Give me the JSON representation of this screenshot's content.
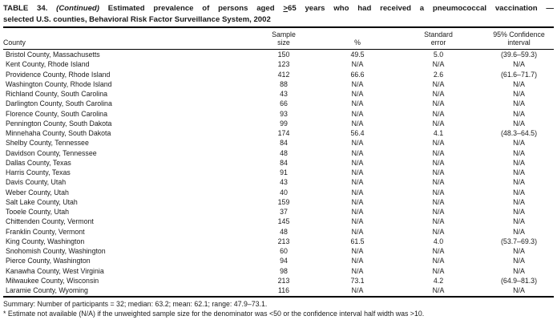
{
  "title": {
    "part1": "TABLE 34. ",
    "continued": "(Continued)",
    "part2": " Estimated prevalence of persons aged ",
    "gte_symbol": ">",
    "part3": "65 years who had received a pneumococcal vaccination —",
    "line2": "selected U.S. counties, Behavioral Risk Factor Surveillance System, 2002"
  },
  "table": {
    "columns": [
      {
        "line1": "",
        "line2": "County"
      },
      {
        "line1": "Sample",
        "line2": "size"
      },
      {
        "line1": "",
        "line2": "%"
      },
      {
        "line1": "Standard",
        "line2": "error"
      },
      {
        "line1": "95% Confidence",
        "line2": "interval"
      }
    ],
    "rows": [
      [
        "Bristol County, Massachusetts",
        "150",
        "49.5",
        "5.0",
        "(39.6–59.3)"
      ],
      [
        "Kent County, Rhode Island",
        "123",
        "N/A",
        "N/A",
        "N/A"
      ],
      [
        "Providence County, Rhode Island",
        "412",
        "66.6",
        "2.6",
        "(61.6–71.7)"
      ],
      [
        "Washington County, Rhode Island",
        "88",
        "N/A",
        "N/A",
        "N/A"
      ],
      [
        "Richland County, South Carolina",
        "43",
        "N/A",
        "N/A",
        "N/A"
      ],
      [
        "Darlington County, South Carolina",
        "66",
        "N/A",
        "N/A",
        "N/A"
      ],
      [
        "Florence County, South Carolina",
        "93",
        "N/A",
        "N/A",
        "N/A"
      ],
      [
        "Pennington County, South Dakota",
        "99",
        "N/A",
        "N/A",
        "N/A"
      ],
      [
        "Minnehaha County, South Dakota",
        "174",
        "56.4",
        "4.1",
        "(48.3–64.5)"
      ],
      [
        "Shelby County, Tennessee",
        "84",
        "N/A",
        "N/A",
        "N/A"
      ],
      [
        "Davidson County, Tennessee",
        "48",
        "N/A",
        "N/A",
        "N/A"
      ],
      [
        "Dallas County, Texas",
        "84",
        "N/A",
        "N/A",
        "N/A"
      ],
      [
        "Harris County, Texas",
        "91",
        "N/A",
        "N/A",
        "N/A"
      ],
      [
        "Davis County, Utah",
        "43",
        "N/A",
        "N/A",
        "N/A"
      ],
      [
        "Weber County, Utah",
        "40",
        "N/A",
        "N/A",
        "N/A"
      ],
      [
        "Salt Lake County, Utah",
        "159",
        "N/A",
        "N/A",
        "N/A"
      ],
      [
        "Tooele County, Utah",
        "37",
        "N/A",
        "N/A",
        "N/A"
      ],
      [
        "Chittenden County, Vermont",
        "145",
        "N/A",
        "N/A",
        "N/A"
      ],
      [
        "Franklin County, Vermont",
        "48",
        "N/A",
        "N/A",
        "N/A"
      ],
      [
        "King County, Washington",
        "213",
        "61.5",
        "4.0",
        "(53.7–69.3)"
      ],
      [
        "Snohomish County, Washington",
        "60",
        "N/A",
        "N/A",
        "N/A"
      ],
      [
        "Pierce County, Washington",
        "94",
        "N/A",
        "N/A",
        "N/A"
      ],
      [
        "Kanawha County, West Virginia",
        "98",
        "N/A",
        "N/A",
        "N/A"
      ],
      [
        "Milwaukee County, Wisconsin",
        "213",
        "73.1",
        "4.2",
        "(64.9–81.3)"
      ],
      [
        "Laramie County, Wyoming",
        "116",
        "N/A",
        "N/A",
        "N/A"
      ]
    ]
  },
  "footer": {
    "summary": "Summary: Number of participants = 32; median: 63.2; mean: 62.1; range: 47.9–73.1.",
    "footnote": "* Estimate not available (N/A) if the unweighted sample size for the denominator was <50 or the confidence interval half width was >10."
  }
}
